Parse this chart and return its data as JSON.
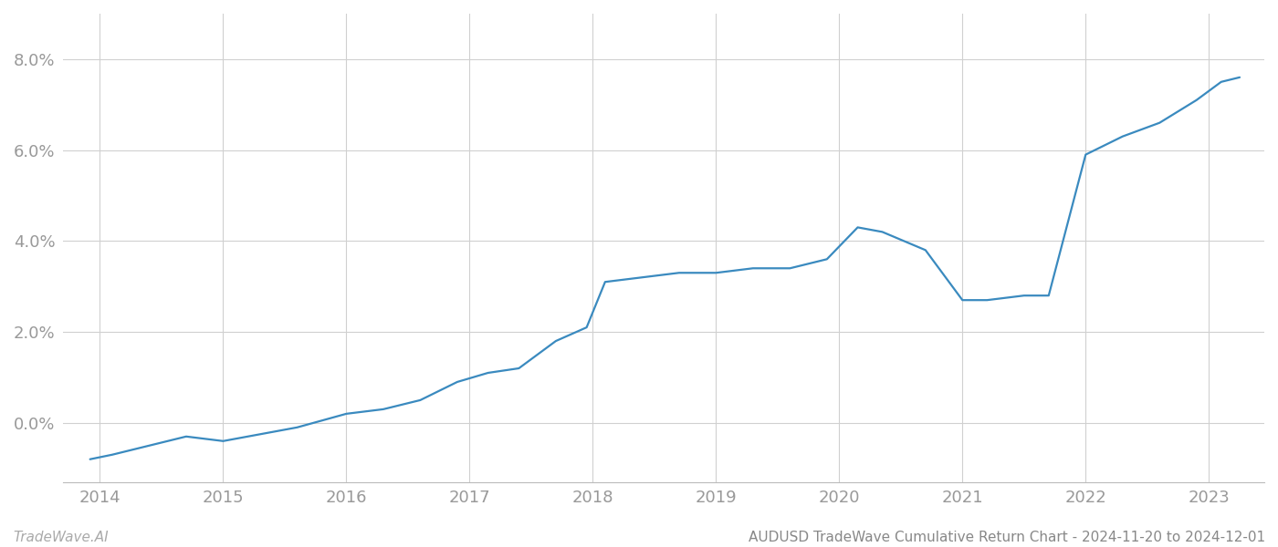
{
  "x_years": [
    2013.92,
    2014.1,
    2014.4,
    2014.7,
    2015.0,
    2015.2,
    2015.6,
    2016.0,
    2016.3,
    2016.6,
    2016.9,
    2017.15,
    2017.4,
    2017.7,
    2017.95,
    2018.1,
    2018.4,
    2018.7,
    2019.0,
    2019.3,
    2019.6,
    2019.9,
    2020.15,
    2020.35,
    2020.7,
    2021.0,
    2021.2,
    2021.5,
    2021.7,
    2022.0,
    2022.3,
    2022.6,
    2022.9,
    2023.1,
    2023.25
  ],
  "y_values": [
    -0.008,
    -0.007,
    -0.005,
    -0.003,
    -0.004,
    -0.003,
    -0.001,
    0.002,
    0.003,
    0.005,
    0.009,
    0.011,
    0.012,
    0.018,
    0.021,
    0.031,
    0.032,
    0.033,
    0.033,
    0.034,
    0.034,
    0.036,
    0.043,
    0.042,
    0.038,
    0.027,
    0.027,
    0.028,
    0.028,
    0.059,
    0.063,
    0.066,
    0.071,
    0.075,
    0.076
  ],
  "line_color": "#3a8abf",
  "background_color": "#ffffff",
  "grid_color": "#d0d0d0",
  "footer_left": "TradeWave.AI",
  "footer_right": "AUDUSD TradeWave Cumulative Return Chart - 2024-11-20 to 2024-12-01",
  "x_ticks": [
    2014,
    2015,
    2016,
    2017,
    2018,
    2019,
    2020,
    2021,
    2022,
    2023
  ],
  "y_ticks": [
    0.0,
    0.02,
    0.04,
    0.06,
    0.08
  ],
  "y_tick_labels": [
    "0.0%",
    "2.0%",
    "4.0%",
    "6.0%",
    "8.0%"
  ],
  "ylim": [
    -0.013,
    0.09
  ],
  "xlim": [
    2013.7,
    2023.45
  ],
  "footer_fontsize": 11,
  "tick_fontsize": 13,
  "line_width": 1.6
}
